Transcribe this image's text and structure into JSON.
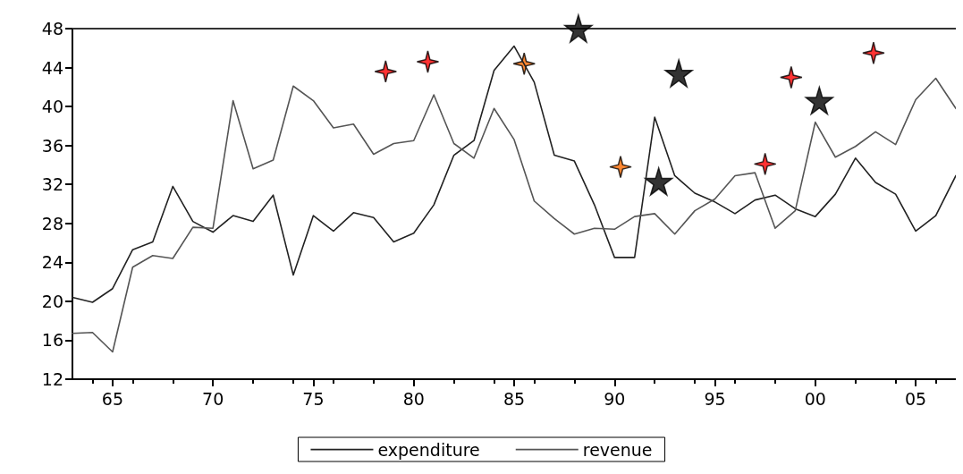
{
  "chart_data": {
    "type": "line",
    "x": [
      1963,
      1964,
      1965,
      1966,
      1967,
      1968,
      1969,
      1970,
      1971,
      1972,
      1973,
      1974,
      1975,
      1976,
      1977,
      1978,
      1979,
      1980,
      1981,
      1982,
      1983,
      1984,
      1985,
      1986,
      1987,
      1988,
      1989,
      1990,
      1991,
      1992,
      1993,
      1994,
      1995,
      1996,
      1997,
      1998,
      1999,
      2000,
      2001,
      2002,
      2003,
      2004,
      2005,
      2006,
      2007
    ],
    "series": [
      {
        "name": "expenditure",
        "color": "#222222",
        "values": [
          20.4,
          19.9,
          21.3,
          25.3,
          26.1,
          31.8,
          28.2,
          27.1,
          28.8,
          28.2,
          30.9,
          22.7,
          28.8,
          27.2,
          29.1,
          28.6,
          26.1,
          27.0,
          29.9,
          35.0,
          36.5,
          43.7,
          46.2,
          42.5,
          35.0,
          34.4,
          29.9,
          24.5,
          24.5,
          38.9,
          32.9,
          31.1,
          30.2,
          29.0,
          30.4,
          30.9,
          29.5,
          28.7,
          31.0,
          34.7,
          32.2,
          31.0,
          27.2,
          28.8,
          32.9
        ]
      },
      {
        "name": "revenue",
        "color": "#555555",
        "values": [
          16.7,
          16.8,
          14.8,
          23.5,
          24.7,
          24.4,
          27.6,
          27.5,
          40.6,
          33.6,
          34.5,
          42.1,
          40.6,
          37.8,
          38.2,
          35.1,
          36.2,
          36.5,
          41.2,
          36.2,
          34.7,
          39.8,
          36.6,
          30.3,
          28.5,
          26.9,
          27.5,
          27.4,
          28.7,
          29.0,
          26.9,
          29.3,
          30.5,
          32.9,
          33.2,
          27.5,
          29.3,
          38.4,
          34.8,
          35.9,
          37.4,
          36.1,
          40.7,
          42.9,
          39.8
        ]
      },
      {
        "type": "scatter",
        "marker": "cross",
        "color": "#ff0000",
        "x": [
          1978.6,
          1980.7,
          1997.5,
          1998.8,
          2002.9
        ],
        "values": [
          43.6,
          44.6,
          34.1,
          43.0,
          45.5
        ]
      },
      {
        "type": "scatter",
        "marker": "cross",
        "color": "#ff6a00",
        "x": [
          1985.5,
          1990.3
        ],
        "values": [
          44.4,
          33.8
        ]
      },
      {
        "type": "scatter",
        "marker": "star",
        "color": "#000000",
        "x": [
          1988.2,
          1992.2,
          1993.2,
          2000.2
        ],
        "values": [
          48,
          32.3,
          43.4,
          40.6
        ]
      }
    ],
    "xlim": [
      1963,
      2007
    ],
    "xticks": [
      {
        "value": 1965,
        "label": "65"
      },
      {
        "value": 1970,
        "label": "70"
      },
      {
        "value": 1975,
        "label": "75"
      },
      {
        "value": 1980,
        "label": "80"
      },
      {
        "value": 1985,
        "label": "85"
      },
      {
        "value": 1990,
        "label": "90"
      },
      {
        "value": 1995,
        "label": "95"
      },
      {
        "value": 2000,
        "label": "00"
      },
      {
        "value": 2005,
        "label": "05"
      }
    ],
    "ylim": [
      12,
      48
    ],
    "yticks": [
      12,
      16,
      20,
      24,
      28,
      32,
      36,
      40,
      44,
      48
    ],
    "grid": false,
    "legend": "bottom",
    "marker": "none",
    "line_style": "solid"
  }
}
